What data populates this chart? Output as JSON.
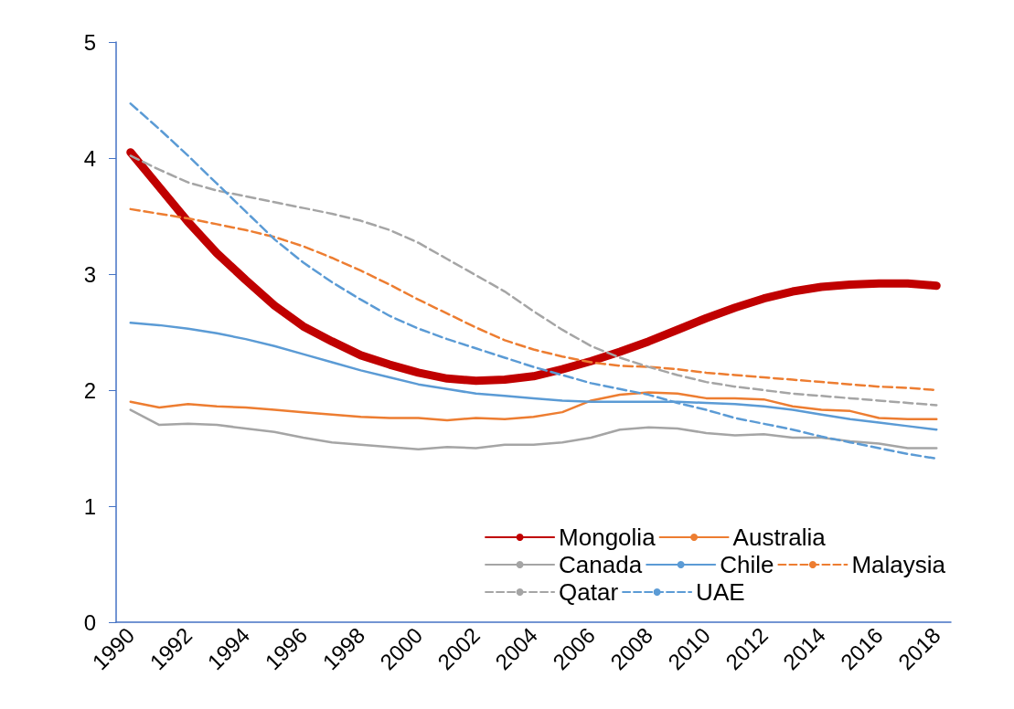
{
  "chart_data": {
    "type": "line",
    "categories": [
      "1990",
      null,
      "1992",
      null,
      "1994",
      null,
      "1996",
      null,
      "1998",
      null,
      "2000",
      null,
      "2002",
      null,
      "2004",
      null,
      "2006",
      null,
      "2008",
      null,
      "2010",
      null,
      "2012",
      null,
      "2014",
      null,
      "2016",
      null,
      "2018"
    ],
    "ylim": [
      0,
      5
    ],
    "yticks": [
      0,
      1,
      2,
      3,
      4,
      5
    ],
    "grid": false,
    "legend": "bottom right",
    "marker": "none",
    "series": [
      {
        "name": "Mongolia",
        "color": "#c00000",
        "values": [
          4.05,
          3.75,
          3.45,
          3.18,
          2.95,
          2.73,
          2.55,
          2.42,
          2.3,
          2.22,
          2.15,
          2.1,
          2.08,
          2.09,
          2.12,
          2.18,
          2.25,
          2.33,
          2.42,
          2.52,
          2.62,
          2.71,
          2.79,
          2.85,
          2.89,
          2.91,
          2.92,
          2.92,
          2.9
        ]
      },
      {
        "name": "Australia",
        "color": "#ed7d31",
        "values": [
          1.9,
          1.85,
          1.88,
          1.86,
          1.85,
          1.83,
          1.81,
          1.79,
          1.77,
          1.76,
          1.76,
          1.74,
          1.76,
          1.75,
          1.77,
          1.81,
          1.91,
          1.96,
          1.98,
          1.97,
          1.93,
          1.93,
          1.92,
          1.86,
          1.83,
          1.82,
          1.76,
          1.75,
          1.75
        ]
      },
      {
        "name": "Canada",
        "color": "#a5a5a5",
        "values": [
          1.83,
          1.7,
          1.71,
          1.7,
          1.67,
          1.64,
          1.59,
          1.55,
          1.53,
          1.51,
          1.49,
          1.51,
          1.5,
          1.53,
          1.53,
          1.55,
          1.59,
          1.66,
          1.68,
          1.67,
          1.63,
          1.61,
          1.62,
          1.59,
          1.59,
          1.56,
          1.54,
          1.5,
          1.5
        ]
      },
      {
        "name": "Chile",
        "color": "#5b9bd5",
        "values": [
          2.58,
          2.56,
          2.53,
          2.49,
          2.44,
          2.38,
          2.31,
          2.24,
          2.17,
          2.11,
          2.05,
          2.01,
          1.97,
          1.95,
          1.93,
          1.91,
          1.9,
          1.9,
          1.9,
          1.9,
          1.89,
          1.88,
          1.86,
          1.83,
          1.79,
          1.75,
          1.72,
          1.69,
          1.66
        ]
      },
      {
        "name": "Malaysia",
        "color": "#ed7d31",
        "line_style": "dashed",
        "values": [
          3.56,
          3.52,
          3.48,
          3.43,
          3.38,
          3.32,
          3.24,
          3.14,
          3.03,
          2.91,
          2.78,
          2.66,
          2.54,
          2.43,
          2.35,
          2.29,
          2.24,
          2.21,
          2.2,
          2.18,
          2.15,
          2.13,
          2.11,
          2.09,
          2.07,
          2.05,
          2.03,
          2.02,
          2.0
        ]
      },
      {
        "name": "Qatar",
        "color": "#a5a5a5",
        "line_style": "dashed",
        "values": [
          4.02,
          3.9,
          3.79,
          3.72,
          3.67,
          3.62,
          3.57,
          3.52,
          3.46,
          3.38,
          3.27,
          3.13,
          2.99,
          2.85,
          2.68,
          2.52,
          2.38,
          2.28,
          2.2,
          2.13,
          2.07,
          2.03,
          2.0,
          1.97,
          1.95,
          1.93,
          1.91,
          1.89,
          1.87
        ]
      },
      {
        "name": "UAE",
        "color": "#5b9bd5",
        "line_style": "dashed",
        "values": [
          4.47,
          4.25,
          4.02,
          3.78,
          3.54,
          3.3,
          3.1,
          2.93,
          2.78,
          2.64,
          2.53,
          2.44,
          2.36,
          2.28,
          2.2,
          2.13,
          2.06,
          2.01,
          1.96,
          1.89,
          1.83,
          1.76,
          1.71,
          1.66,
          1.6,
          1.55,
          1.5,
          1.45,
          1.41
        ]
      }
    ]
  }
}
